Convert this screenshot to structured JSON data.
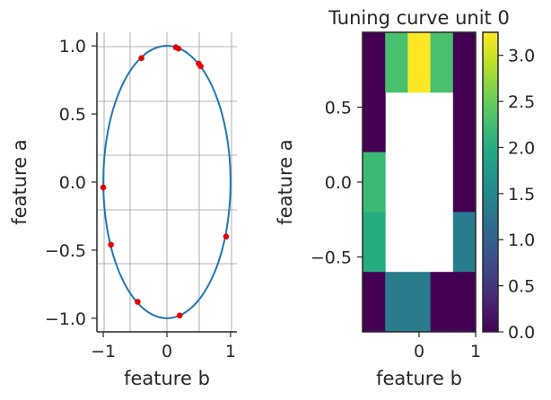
{
  "chart_data": [
    {
      "type": "scatter",
      "xlabel": "feature b",
      "ylabel": "feature a",
      "xlim": [
        -1.1,
        1.1
      ],
      "ylim": [
        -1.1,
        1.1
      ],
      "xticks": [
        -1,
        0,
        1
      ],
      "xtick_labels": [
        "−1",
        "0",
        "1"
      ],
      "yticks": [
        1.0,
        0.5,
        0.0,
        -0.5,
        -1.0
      ],
      "ytick_labels": [
        "1.0",
        "0.5",
        "0.0",
        "−0.5",
        "−1.0"
      ],
      "grid": true,
      "curve": {
        "shape": "unit-circle",
        "color": "#1f77b4"
      },
      "point_color": "#e60000",
      "points": [
        {
          "x": -0.4,
          "y": 0.91
        },
        {
          "x": 0.14,
          "y": 0.99
        },
        {
          "x": 0.18,
          "y": 0.98
        },
        {
          "x": 0.5,
          "y": 0.87
        },
        {
          "x": 0.53,
          "y": 0.85
        },
        {
          "x": -1.0,
          "y": -0.04
        },
        {
          "x": -0.88,
          "y": -0.46
        },
        {
          "x": 0.93,
          "y": -0.4
        },
        {
          "x": -0.46,
          "y": -0.88
        },
        {
          "x": 0.2,
          "y": -0.98
        }
      ]
    },
    {
      "type": "heatmap",
      "title": "Tuning curve unit 0",
      "xlabel": "feature b",
      "ylabel": "feature a",
      "x_edges": [
        -1,
        -0.6,
        -0.2,
        0.2,
        0.6,
        1
      ],
      "y_edges": [
        1,
        0.6,
        0.2,
        -0.2,
        -0.6,
        -1
      ],
      "xticks": [
        0,
        1
      ],
      "xtick_labels": [
        "0",
        "1"
      ],
      "yticks": [
        0.5,
        0.0,
        -0.5
      ],
      "ytick_labels": [
        "0.5",
        "0.0",
        "−0.5"
      ],
      "colormap": "viridis",
      "clim": [
        0,
        3.25
      ],
      "values": [
        [
          0.0,
          2.3,
          3.25,
          2.3,
          0.0
        ],
        [
          0.0,
          null,
          null,
          null,
          0.0
        ],
        [
          2.2,
          null,
          null,
          null,
          0.0
        ],
        [
          2.0,
          null,
          null,
          null,
          1.35
        ],
        [
          0.0,
          1.35,
          1.35,
          0.0,
          0.0
        ]
      ],
      "colorbar": {
        "ticks": [
          3.0,
          2.5,
          2.0,
          1.5,
          1.0,
          0.5,
          0.0
        ],
        "tick_labels": [
          "3.0",
          "2.5",
          "2.0",
          "1.5",
          "1.0",
          "0.5",
          "0.0"
        ]
      }
    }
  ]
}
